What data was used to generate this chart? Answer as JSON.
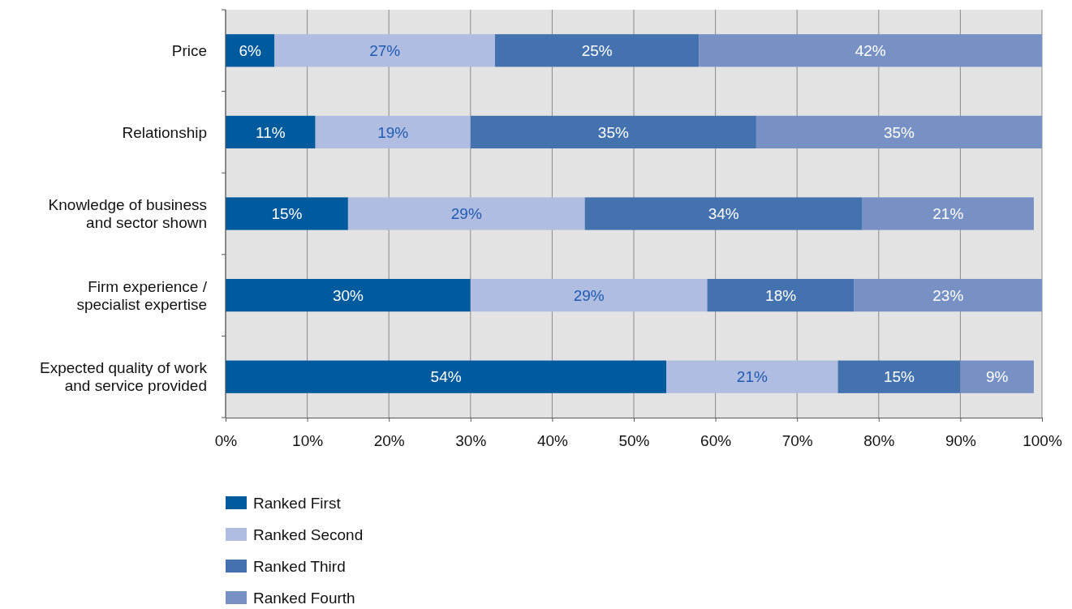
{
  "chart_data": {
    "type": "bar",
    "orientation": "horizontal",
    "stacked": true,
    "grid": "x",
    "legend": "bottom",
    "categories": [
      "Price",
      "Relationship",
      "Knowledge of business and sector shown",
      "Firm experience / specialist expertise",
      "Expected quality of work and service provided"
    ],
    "xlim": [
      0,
      100
    ],
    "xticks": [
      {
        "value": 0,
        "label": "0%"
      },
      {
        "value": 10,
        "label": "10%"
      },
      {
        "value": 20,
        "label": "20%"
      },
      {
        "value": 30,
        "label": "30%"
      },
      {
        "value": 40,
        "label": "40%"
      },
      {
        "value": 50,
        "label": "50%"
      },
      {
        "value": 60,
        "label": "60%"
      },
      {
        "value": 70,
        "label": "70%"
      },
      {
        "value": 80,
        "label": "80%"
      },
      {
        "value": 90,
        "label": "90%"
      },
      {
        "value": 100,
        "label": "100%"
      }
    ],
    "series": [
      {
        "name": "Ranked First",
        "color": "#005a9e",
        "values": [
          6,
          11,
          15,
          30,
          54
        ],
        "value_labels": [
          "6%",
          "11%",
          "15%",
          "30%",
          "54%"
        ]
      },
      {
        "name": "Ranked Second",
        "color": "#b0bde0",
        "values": [
          27,
          19,
          29,
          29,
          21
        ],
        "value_labels": [
          "27%",
          "19%",
          "29%",
          "29%",
          "21%"
        ]
      },
      {
        "name": "Ranked Third",
        "color": "#4472ae",
        "values": [
          25,
          35,
          34,
          18,
          15
        ],
        "value_labels": [
          "25%",
          "35%",
          "34%",
          "18%",
          "15%"
        ]
      },
      {
        "name": "Ranked Fourth",
        "color": "#7891c4",
        "values": [
          42,
          35,
          21,
          23,
          9
        ],
        "value_labels": [
          "42%",
          "35%",
          "21%",
          "23%",
          "9%"
        ]
      }
    ]
  }
}
